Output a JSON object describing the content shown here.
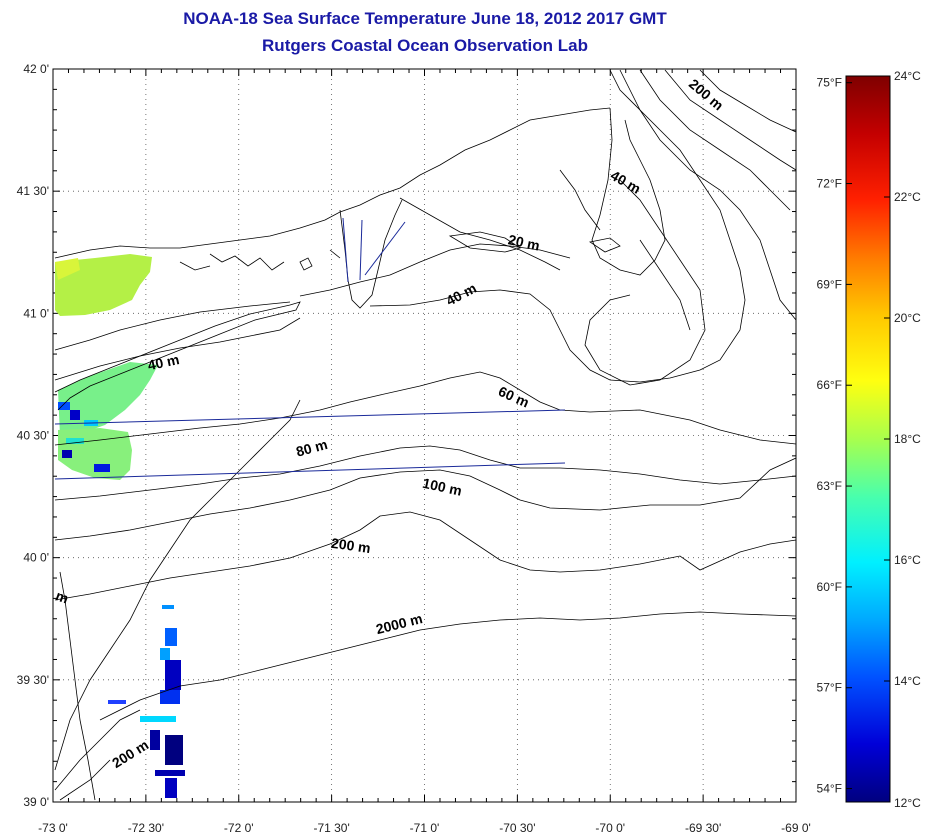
{
  "title": {
    "line1": "NOAA-18 Sea Surface Temperature June 18, 2012 2017 GMT",
    "line2": "Rutgers Coastal Ocean Observation Lab"
  },
  "map": {
    "lat_labels": [
      "42 0'",
      "41 30'",
      "41 0'",
      "40 30'",
      "40 0'",
      "39 30'",
      "39 0'"
    ],
    "lon_labels": [
      "-73 0'",
      "-72 30'",
      "-72 0'",
      "-71 30'",
      "-71 0'",
      "-70 30'",
      "-70 0'",
      "-69 30'",
      "-69 0'"
    ],
    "isobath_labels": [
      {
        "text": "200 m",
        "lon": -69.5,
        "lat": 41.88,
        "rot": 40
      },
      {
        "text": "40 m",
        "lon": -69.93,
        "lat": 41.52,
        "rot": 30
      },
      {
        "text": "20 m",
        "lon": -70.47,
        "lat": 41.27,
        "rot": 12
      },
      {
        "text": "40 m",
        "lon": -70.79,
        "lat": 41.06,
        "rot": -28
      },
      {
        "text": "40 m",
        "lon": -72.4,
        "lat": 40.78,
        "rot": -12
      },
      {
        "text": "60 m",
        "lon": -70.53,
        "lat": 40.64,
        "rot": 24
      },
      {
        "text": "80 m",
        "lon": -71.6,
        "lat": 40.43,
        "rot": -15
      },
      {
        "text": "100 m",
        "lon": -70.91,
        "lat": 40.27,
        "rot": 12
      },
      {
        "text": "200 m",
        "lon": -71.4,
        "lat": 40.03,
        "rot": 8
      },
      {
        "text": "2000 m",
        "lon": -71.13,
        "lat": 39.71,
        "rot": -14
      },
      {
        "text": "200 m",
        "lon": -72.57,
        "lat": 39.18,
        "rot": -32
      },
      {
        "text": "m",
        "lon": -72.96,
        "lat": 39.82,
        "rot": 20
      }
    ]
  },
  "colorbar": {
    "min_c": 12,
    "max_c": 24,
    "celsius_labels": [
      "24°C",
      "22°C",
      "20°C",
      "18°C",
      "16°C",
      "14°C",
      "12°C"
    ],
    "fahrenheit_labels": [
      "75°F",
      "72°F",
      "69°F",
      "66°F",
      "63°F",
      "60°F",
      "57°F",
      "54°F"
    ],
    "colors": [
      "#7f0000",
      "#c40000",
      "#ff2000",
      "#ff7a00",
      "#ffc800",
      "#ffff10",
      "#a8ff4d",
      "#48ffad",
      "#00f0ff",
      "#00a8ff",
      "#0050ff",
      "#0000d8",
      "#00007f"
    ]
  },
  "sst_patches": [
    {
      "region": "long-island-sound-west",
      "temp_c": 19.2
    },
    {
      "region": "long-island-south-shore",
      "temp_c": 18.4
    },
    {
      "region": "new-jersey-shelf",
      "temp_c": 14.8
    }
  ]
}
